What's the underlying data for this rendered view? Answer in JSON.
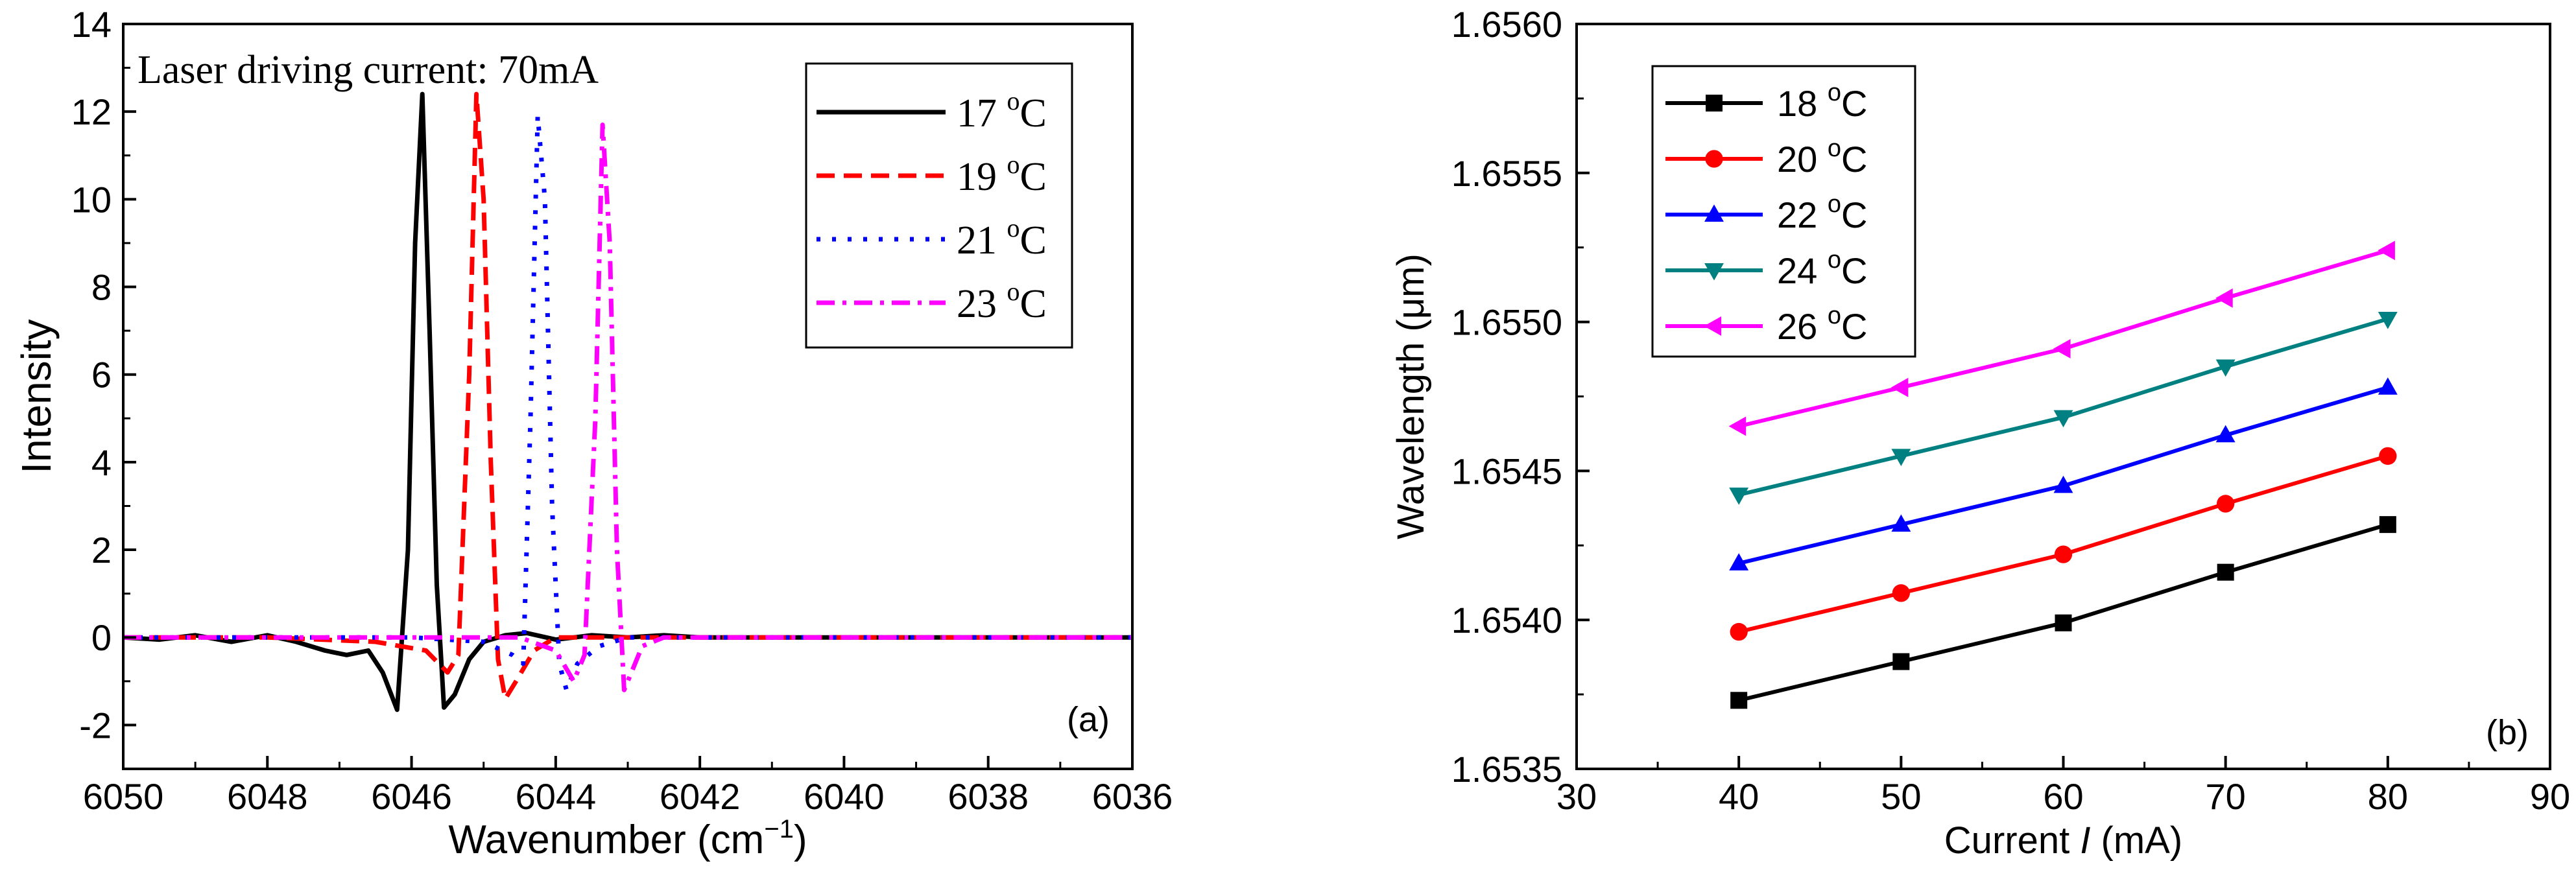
{
  "chart_data": [
    {
      "type": "line",
      "panel": "(a)",
      "annotation": "Laser driving current: 70mA",
      "xlabel": "Wavenumber (cm",
      "xlabel_sup": "−1",
      "xlabel_close": ")",
      "ylabel": "Intensity",
      "xlim": [
        6050,
        6036
      ],
      "ylim": [
        -3,
        14
      ],
      "xticks": [
        "6050",
        "6048",
        "6046",
        "6044",
        "6042",
        "6040",
        "6038",
        "6036"
      ],
      "yticks": [
        "-2",
        "0",
        "2",
        "4",
        "6",
        "8",
        "10",
        "12",
        "14"
      ],
      "legend_position": "top-right",
      "series": [
        {
          "name": "17",
          "unit": "C",
          "color": "#000000",
          "dash": "solid",
          "x": [
            6050,
            6049.5,
            6049,
            6048.5,
            6048,
            6047.6,
            6047.2,
            6046.9,
            6046.6,
            6046.4,
            6046.2,
            6046.05,
            6045.95,
            6045.85,
            6045.75,
            6045.65,
            6045.55,
            6045.4,
            6045.2,
            6045.0,
            6044.7,
            6044.4,
            6044.0,
            6043.5,
            6043.0,
            6042.5,
            6042.0,
            6041,
            6040,
            6039,
            6038,
            6037,
            6036
          ],
          "y": [
            0,
            -0.05,
            0.05,
            -0.1,
            0.05,
            -0.1,
            -0.3,
            -0.4,
            -0.3,
            -0.8,
            -1.65,
            2.0,
            9.0,
            12.4,
            7.0,
            1.2,
            -1.6,
            -1.3,
            -0.5,
            -0.1,
            0.05,
            0.1,
            -0.05,
            0.05,
            0,
            0.05,
            0,
            0,
            0,
            0,
            0,
            0,
            0
          ]
        },
        {
          "name": "19",
          "unit": "C",
          "color": "#ff0000",
          "dash": "dashed",
          "x": [
            6050,
            6048,
            6046.5,
            6045.8,
            6045.5,
            6045.35,
            6045.2,
            6045.1,
            6045.0,
            6044.9,
            6044.8,
            6044.7,
            6044.55,
            6044.3,
            6044.0,
            6043,
            6042,
            6040,
            6038,
            6036
          ],
          "y": [
            0,
            0,
            -0.1,
            -0.3,
            -0.8,
            -0.4,
            6.0,
            12.4,
            10.0,
            4.0,
            -0.5,
            -1.4,
            -1.0,
            -0.3,
            0,
            0,
            0,
            0,
            0,
            0
          ]
        },
        {
          "name": "21",
          "unit": "C",
          "color": "#0000ff",
          "dash": "dotted",
          "x": [
            6050,
            6048,
            6046,
            6045,
            6044.6,
            6044.45,
            6044.35,
            6044.25,
            6044.15,
            6044.05,
            6043.95,
            6043.85,
            6043.7,
            6043.4,
            6043,
            6042,
            6040,
            6038,
            6036
          ],
          "y": [
            0,
            0,
            0,
            -0.1,
            -0.4,
            -0.6,
            5.0,
            11.9,
            10.0,
            3.0,
            -0.6,
            -1.2,
            -0.6,
            -0.2,
            0,
            0,
            0,
            0,
            0
          ]
        },
        {
          "name": "23",
          "unit": "C",
          "color": "#ff00ff",
          "dash": "dashdot",
          "x": [
            6050,
            6048,
            6046,
            6044.5,
            6044.0,
            6043.75,
            6043.6,
            6043.45,
            6043.35,
            6043.25,
            6043.15,
            6043.05,
            6042.95,
            6042.8,
            6042.5,
            6042,
            6041,
            6040,
            6038,
            6036
          ],
          "y": [
            0,
            0,
            0,
            0,
            -0.3,
            -1.0,
            -0.4,
            5.0,
            11.7,
            9.0,
            2.0,
            -1.2,
            -0.8,
            -0.2,
            0,
            0,
            0,
            0,
            0,
            0
          ]
        }
      ]
    },
    {
      "type": "line",
      "panel": "(b)",
      "xlabel_pre": "Current ",
      "xlabel_var": "I",
      "xlabel_post": " (mA)",
      "ylabel": "Wavelength (μm)",
      "xlim": [
        30,
        90
      ],
      "ylim": [
        1.6535,
        1.656
      ],
      "xticks": [
        "30",
        "40",
        "50",
        "60",
        "70",
        "80",
        "90"
      ],
      "yticks": [
        "1.6535",
        "1.6540",
        "1.6545",
        "1.6550",
        "1.6555",
        "1.6560"
      ],
      "legend_position": "top-left",
      "x": [
        40,
        50,
        60,
        70,
        80
      ],
      "series": [
        {
          "name": "18",
          "unit": "C",
          "color": "#000000",
          "marker": "square",
          "values": [
            1.65373,
            1.65386,
            1.65399,
            1.65416,
            1.65432
          ]
        },
        {
          "name": "20",
          "unit": "C",
          "color": "#ff0000",
          "marker": "circle",
          "values": [
            1.65396,
            1.65409,
            1.65422,
            1.65439,
            1.65455
          ]
        },
        {
          "name": "22",
          "unit": "C",
          "color": "#0000ff",
          "marker": "triangle-up",
          "values": [
            1.65419,
            1.65432,
            1.65445,
            1.65462,
            1.65478
          ]
        },
        {
          "name": "24",
          "unit": "C",
          "color": "#008080",
          "marker": "triangle-down",
          "values": [
            1.65442,
            1.65455,
            1.65468,
            1.65485,
            1.65501
          ]
        },
        {
          "name": "26",
          "unit": "C",
          "color": "#ff00ff",
          "marker": "triangle-left",
          "values": [
            1.65465,
            1.65478,
            1.65491,
            1.65508,
            1.65524
          ]
        }
      ]
    }
  ]
}
